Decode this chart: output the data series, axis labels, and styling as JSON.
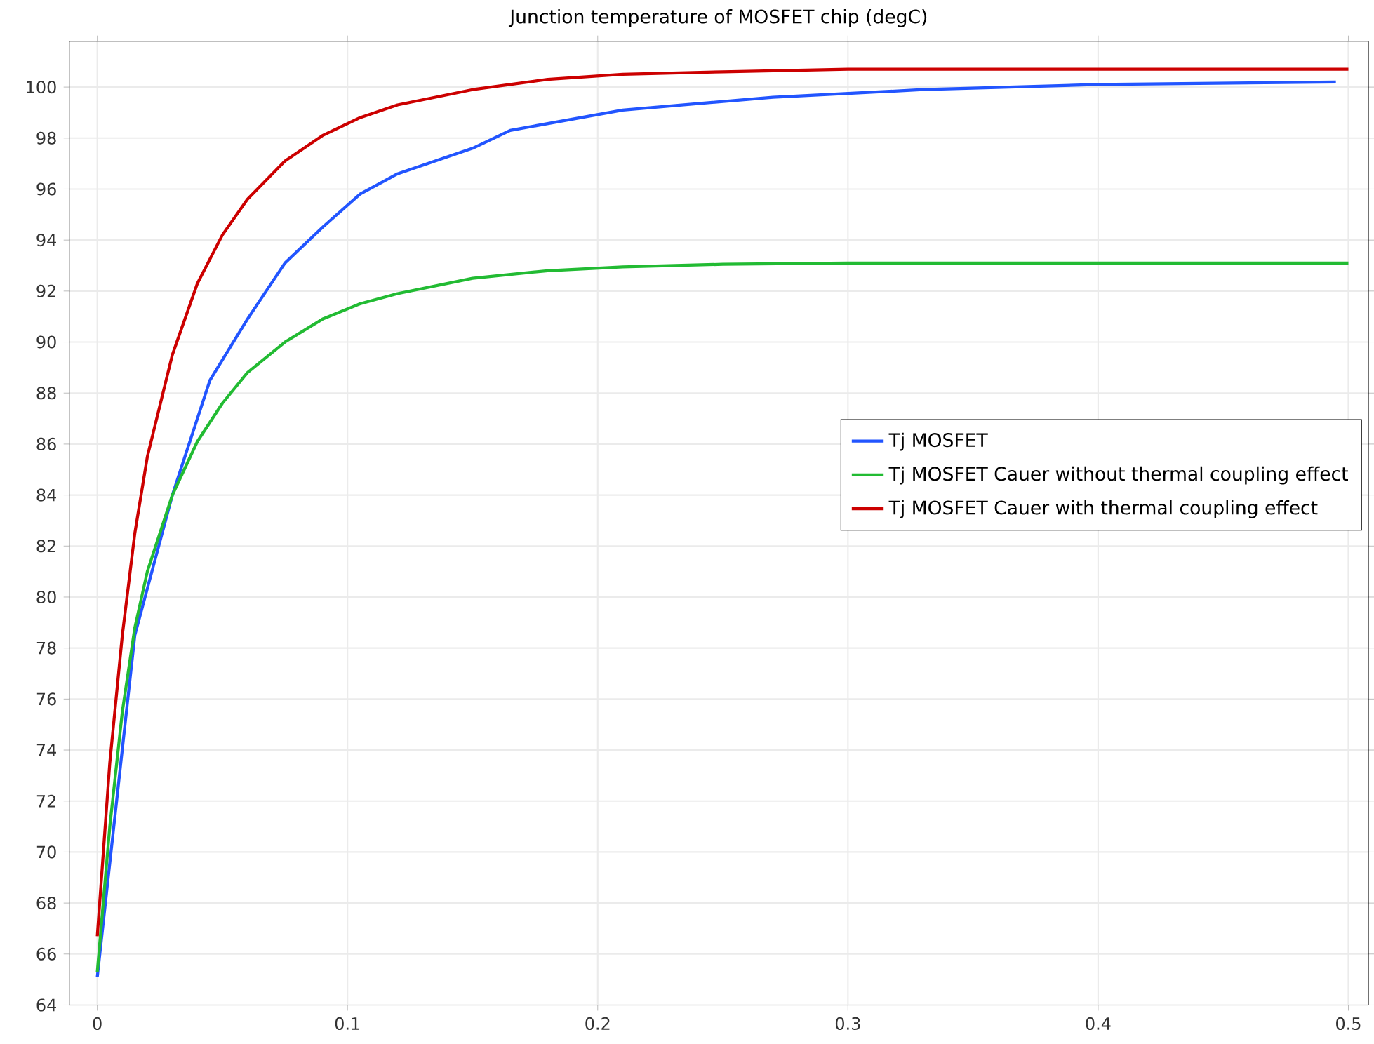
{
  "chart_data": {
    "type": "line",
    "title": "Junction temperature of MOSFET chip (degC)",
    "xlim": [
      -0.0112,
      0.508
    ],
    "ylim": [
      64,
      101.8
    ],
    "xticks": [
      0,
      0.1,
      0.2,
      0.3,
      0.4,
      0.5
    ],
    "yticks": [
      64,
      66,
      68,
      70,
      72,
      74,
      76,
      78,
      80,
      82,
      84,
      86,
      88,
      90,
      92,
      94,
      96,
      98,
      100
    ],
    "grid": true,
    "legend": "right",
    "marker": "none",
    "line_style": "solid",
    "series": [
      {
        "name": "Tj MOSFET",
        "color": "#2255ff",
        "x": [
          0,
          0.015,
          0.03,
          0.045,
          0.06,
          0.075,
          0.09,
          0.105,
          0.12,
          0.15,
          0.165,
          0.21,
          0.27,
          0.33,
          0.4,
          0.495
        ],
        "values": [
          65.1,
          78.5,
          84.0,
          88.5,
          90.9,
          93.1,
          94.5,
          95.8,
          96.6,
          97.6,
          98.3,
          99.1,
          99.6,
          99.9,
          100.1,
          100.2
        ]
      },
      {
        "name": "Tj MOSFET Cauer without thermal coupling effect",
        "color": "#22bb33",
        "x": [
          0,
          0.005,
          0.01,
          0.015,
          0.02,
          0.03,
          0.04,
          0.05,
          0.06,
          0.075,
          0.09,
          0.105,
          0.12,
          0.15,
          0.18,
          0.21,
          0.25,
          0.3,
          0.5
        ],
        "values": [
          65.3,
          71,
          75.5,
          78.8,
          81.0,
          84.0,
          86.1,
          87.6,
          88.8,
          90.0,
          90.9,
          91.5,
          91.9,
          92.5,
          92.8,
          92.95,
          93.05,
          93.1,
          93.1
        ]
      },
      {
        "name": "Tj MOSFET Cauer with thermal coupling effect",
        "color": "#cc0000",
        "x": [
          0,
          0.005,
          0.01,
          0.015,
          0.02,
          0.03,
          0.04,
          0.05,
          0.06,
          0.075,
          0.09,
          0.105,
          0.12,
          0.15,
          0.18,
          0.21,
          0.25,
          0.3,
          0.5
        ],
        "values": [
          66.7,
          73.5,
          78.5,
          82.5,
          85.5,
          89.5,
          92.3,
          94.2,
          95.6,
          97.1,
          98.1,
          98.8,
          99.3,
          99.9,
          100.3,
          100.5,
          100.6,
          100.7,
          100.7
        ]
      }
    ]
  }
}
